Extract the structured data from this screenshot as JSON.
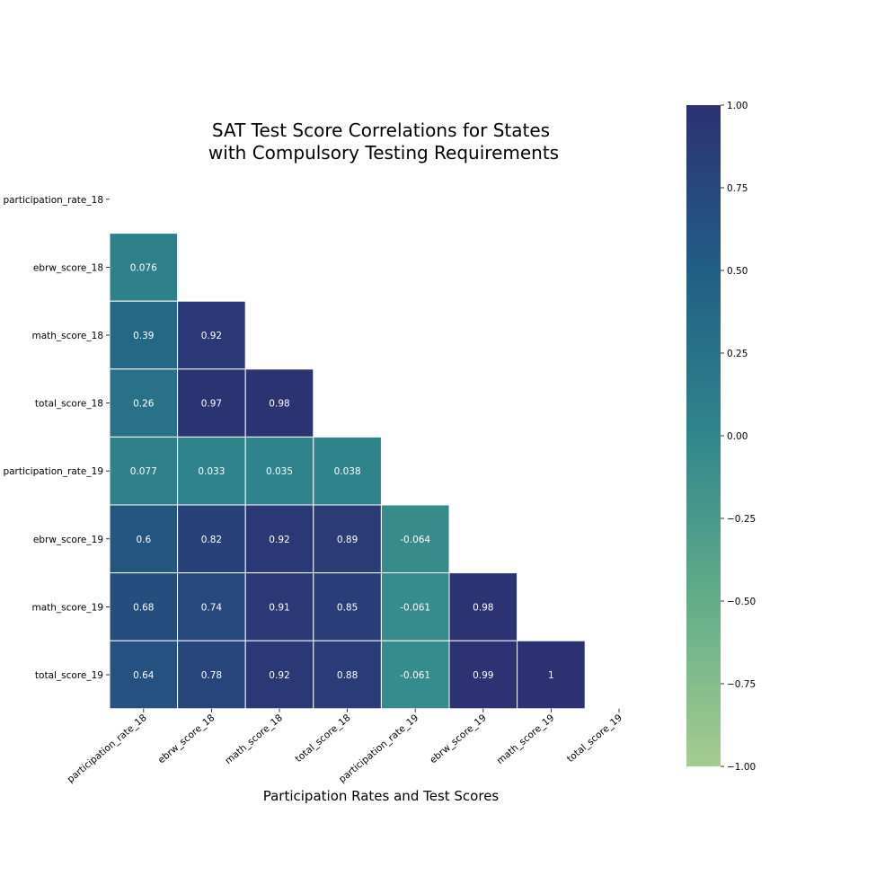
{
  "chart_data": {
    "type": "heatmap",
    "title_lines": [
      "SAT Test Score Correlations for States",
      "with Compulsory Testing Requirements"
    ],
    "xlabel": "Participation Rates and Test Scores",
    "ylabel": "",
    "labels": [
      "participation_rate_18",
      "ebrw_score_18",
      "math_score_18",
      "total_score_18",
      "participation_rate_19",
      "ebrw_score_19",
      "math_score_19",
      "total_score_19"
    ],
    "mask": "upper-triangle-including-diagonal",
    "values": [
      [
        null,
        null,
        null,
        null,
        null,
        null,
        null,
        null
      ],
      [
        0.076,
        null,
        null,
        null,
        null,
        null,
        null,
        null
      ],
      [
        0.39,
        0.92,
        null,
        null,
        null,
        null,
        null,
        null
      ],
      [
        0.26,
        0.97,
        0.98,
        null,
        null,
        null,
        null,
        null
      ],
      [
        0.077,
        0.033,
        0.035,
        0.038,
        null,
        null,
        null,
        null
      ],
      [
        0.6,
        0.82,
        0.92,
        0.89,
        -0.064,
        null,
        null,
        null
      ],
      [
        0.68,
        0.74,
        0.91,
        0.85,
        -0.061,
        0.98,
        null,
        null
      ],
      [
        0.64,
        0.78,
        0.92,
        0.88,
        -0.061,
        0.99,
        1,
        null
      ]
    ],
    "annotations": true,
    "colorbar": {
      "range": [
        -1.0,
        1.0
      ],
      "ticks": [
        "1.00",
        "0.75",
        "0.50",
        "0.25",
        "0.00",
        "−0.25",
        "−0.50",
        "−0.75",
        "−1.00"
      ],
      "tick_values": [
        1.0,
        0.75,
        0.5,
        0.25,
        0.0,
        -0.25,
        -0.5,
        -0.75,
        -1.0
      ],
      "colormap": "crest",
      "color_low": "#a5cd90",
      "color_high": "#2c3172"
    },
    "grid": false
  }
}
